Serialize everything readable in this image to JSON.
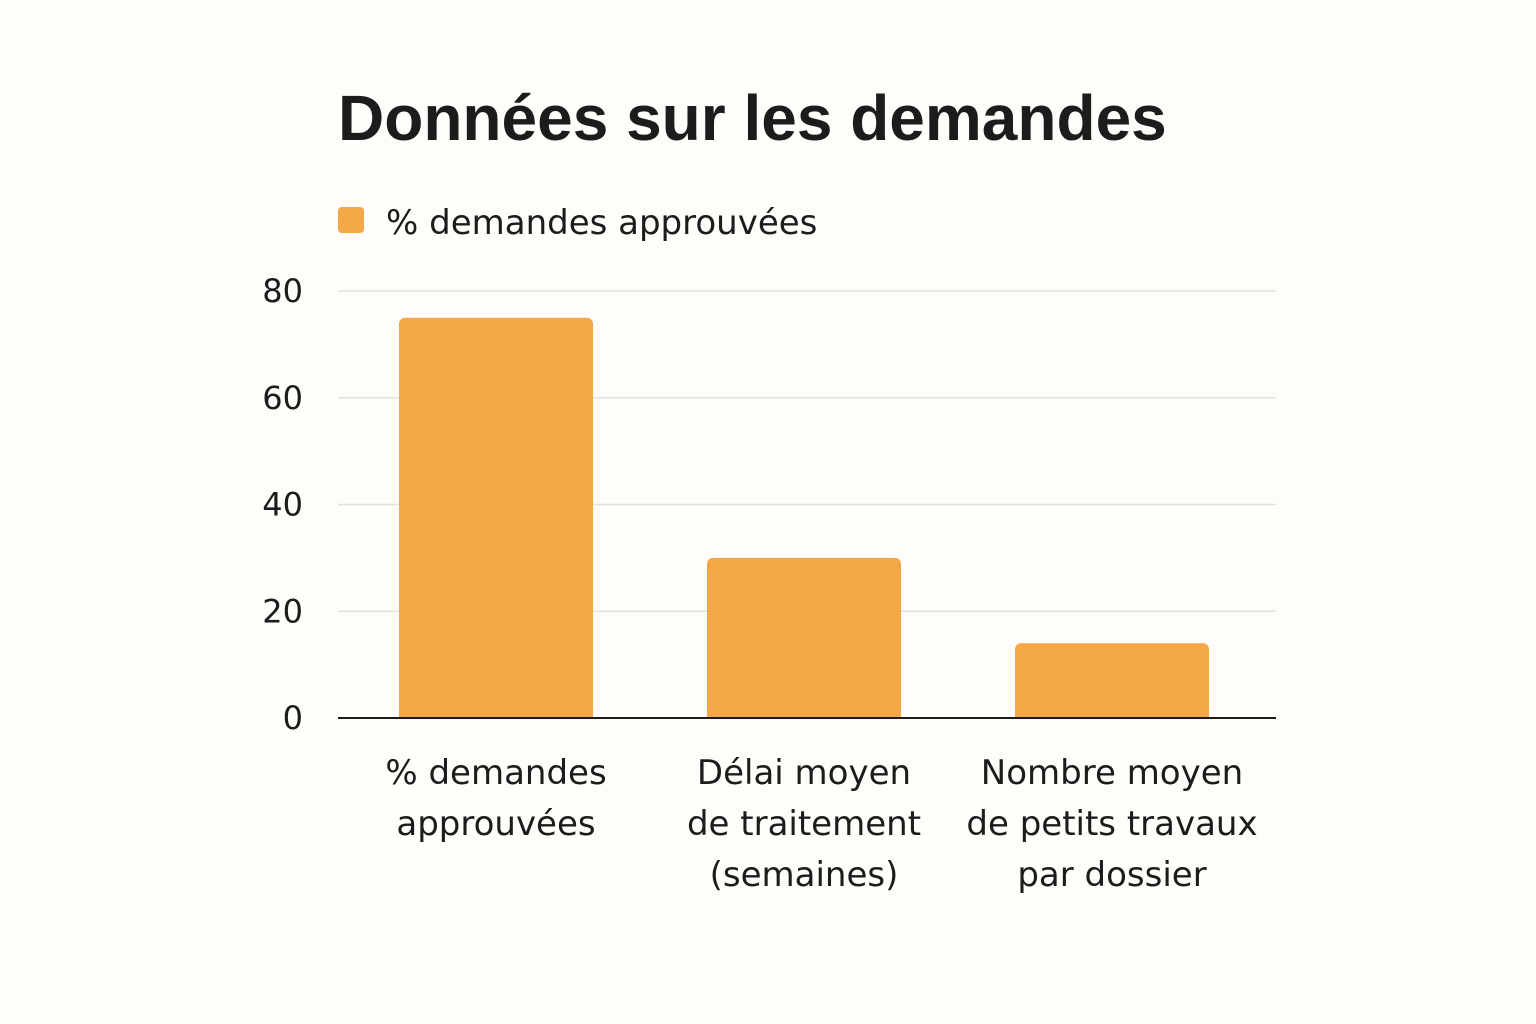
{
  "chart_data": {
    "type": "bar",
    "title": "Données sur les demandes",
    "xlabel": "",
    "ylabel": "",
    "ylim": [
      0,
      80
    ],
    "yticks": [
      0,
      20,
      40,
      60,
      80
    ],
    "grid": true,
    "legend_position": "top-left",
    "categories": [
      [
        "% demandes",
        "approuvées"
      ],
      [
        "Délai moyen",
        "de traitement",
        "(semaines)"
      ],
      [
        "Nombre moyen",
        "de petits travaux",
        "par dossier"
      ]
    ],
    "series": [
      {
        "name": "% demandes approuvées",
        "color": "#f5a847",
        "values": [
          75,
          30,
          14
        ]
      }
    ]
  }
}
